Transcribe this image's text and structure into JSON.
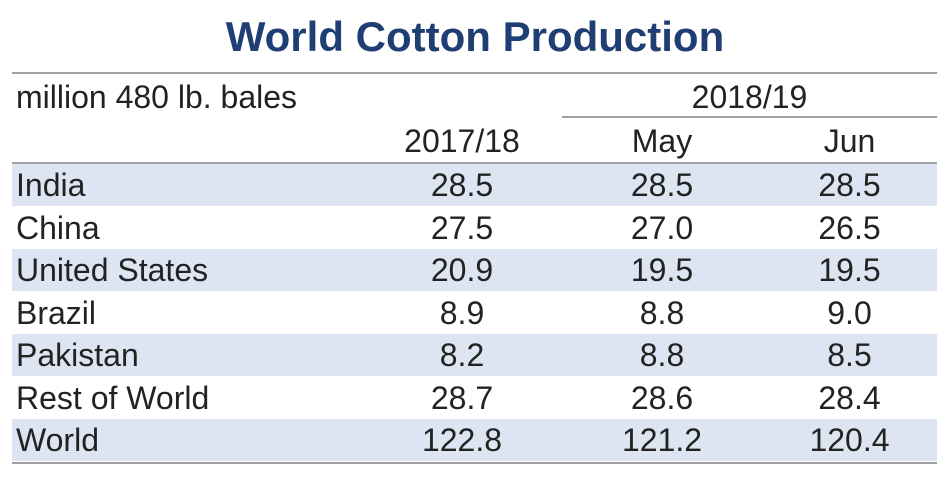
{
  "table": {
    "title": "World Cotton Production",
    "unit": "million 480 lb. bales",
    "group_header": "2018/19",
    "columns": [
      "2017/18",
      "May",
      "Jun"
    ],
    "rows": [
      {
        "name": "India",
        "values": [
          "28.5",
          "28.5",
          "28.5"
        ]
      },
      {
        "name": "China",
        "values": [
          "27.5",
          "27.0",
          "26.5"
        ]
      },
      {
        "name": "United States",
        "values": [
          "20.9",
          "19.5",
          "19.5"
        ]
      },
      {
        "name": "Brazil",
        "values": [
          "8.9",
          "8.8",
          "9.0"
        ]
      },
      {
        "name": "Pakistan",
        "values": [
          "8.2",
          "8.8",
          "8.5"
        ]
      },
      {
        "name": "Rest of World",
        "values": [
          "28.7",
          "28.6",
          "28.4"
        ]
      },
      {
        "name": "World",
        "values": [
          "122.8",
          "121.2",
          "120.4"
        ]
      }
    ]
  },
  "chart_data": {
    "type": "table",
    "title": "World Cotton Production",
    "ylabel": "million 480 lb. bales",
    "categories": [
      "India",
      "China",
      "United States",
      "Brazil",
      "Pakistan",
      "Rest of World",
      "World"
    ],
    "series": [
      {
        "name": "2017/18",
        "values": [
          28.5,
          27.5,
          20.9,
          8.9,
          8.2,
          28.7,
          122.8
        ]
      },
      {
        "name": "2018/19 May",
        "values": [
          28.5,
          27.0,
          19.5,
          8.8,
          8.8,
          28.6,
          121.2
        ]
      },
      {
        "name": "2018/19 Jun",
        "values": [
          28.5,
          26.5,
          19.5,
          9.0,
          8.5,
          28.4,
          120.4
        ]
      }
    ]
  },
  "colors": {
    "title": "#1f3e73",
    "band": "#dde5f2",
    "rule": "#a0a0a0",
    "text": "#222222"
  }
}
